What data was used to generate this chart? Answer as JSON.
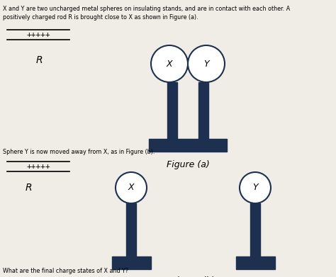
{
  "bg_color": "#f0ece6",
  "dark_color": "#1e3050",
  "title_text1": "X and Y are two uncharged metal spheres on insulating stands, and are in contact with each other. A",
  "title_text2": "positively charged rod R is brought close to X as shown in Figure (a).",
  "mid_text": "Sphere Y is now moved away from X, as in Figure (b).",
  "bottom_text": "What are the final charge states of X and Y?",
  "fig_a_label": "Figure (a)",
  "fig_b_label": "Figure (b)",
  "rod_plus": "+++++",
  "sphere_outline_color": "#555555",
  "sphere_fill": "#ffffff",
  "text_color": "#222222"
}
